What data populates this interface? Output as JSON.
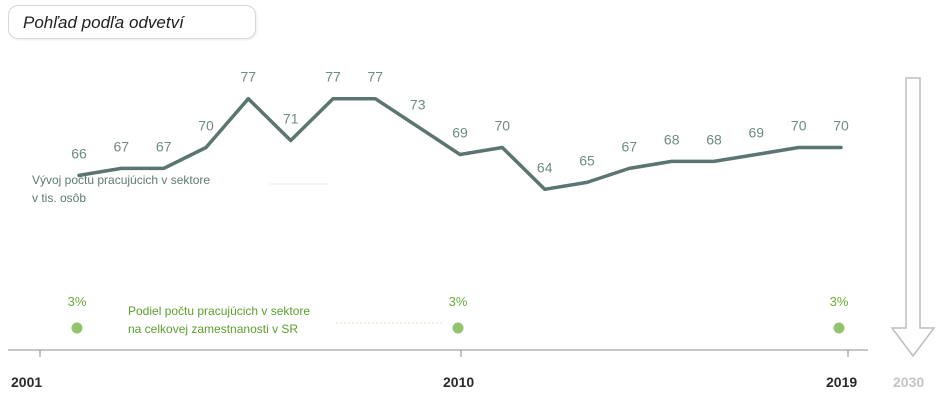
{
  "title": "Pohľad podľa odvetví",
  "employment_label": {
    "line1": "Vývoj počtu pracujúcich v sektore",
    "line2": "v tis. osôb"
  },
  "share_label": {
    "line1": "Podiel počtu pracujúcich v sektore",
    "line2": "na celkovej zamestnanosti v SR"
  },
  "years": {
    "y2001": "2001",
    "y2010": "2010",
    "y2019": "2019",
    "y2030": "2030"
  },
  "colors": {
    "line": "#5b7570",
    "value_label": "#708a84",
    "share": "#93c46d",
    "share_text": "#6aaa3a",
    "axis": "#8e8e8e",
    "future_arrow": "#bdbdbd"
  },
  "chart_data": [
    {
      "type": "line",
      "title": "Vývoj počtu pracujúcich v sektore v tis. osôb",
      "x": [
        2001,
        2002,
        2003,
        2004,
        2005,
        2006,
        2007,
        2008,
        2009,
        2010,
        2011,
        2012,
        2013,
        2014,
        2015,
        2016,
        2017,
        2018,
        2019
      ],
      "values": [
        66,
        67,
        67,
        70,
        77,
        71,
        77,
        77,
        73,
        69,
        70,
        64,
        65,
        67,
        68,
        68,
        69,
        70,
        70
      ],
      "labels": [
        "66",
        "67",
        "67",
        "70",
        "77",
        "71",
        "77",
        "77",
        "73",
        "69",
        "70",
        "64",
        "65",
        "67",
        "68",
        "68",
        "69",
        "70",
        "70"
      ],
      "ylim": [
        50,
        90
      ],
      "xlabel": "",
      "ylabel": "v tis. osôb"
    },
    {
      "type": "scatter",
      "title": "Podiel počtu pracujúcich v sektore na celkovej zamestnanosti v SR",
      "x": [
        2001,
        2010,
        2019
      ],
      "values": [
        3,
        3,
        3
      ],
      "labels": [
        "3%",
        "3%",
        "3%"
      ],
      "unit": "%"
    }
  ]
}
